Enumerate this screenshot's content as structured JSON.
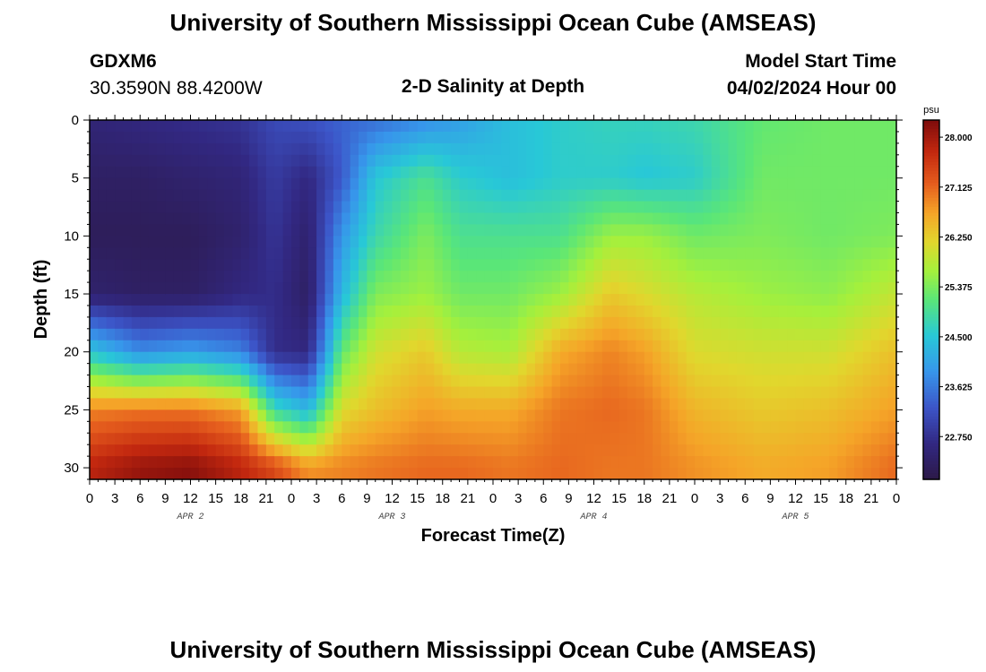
{
  "header": {
    "title": "University of Southern Mississippi Ocean Cube (AMSEAS)",
    "station": "GDXM6",
    "location": "30.3590N  88.4200W",
    "plot_title": "2-D Salinity at Depth",
    "model_start_label": "Model Start Time",
    "model_start_value": "04/02/2024 Hour 00"
  },
  "footer": {
    "title": "University of Southern Mississippi Ocean Cube (AMSEAS)"
  },
  "chart_data": {
    "type": "heatmap",
    "title": "2-D Salinity at Depth",
    "xlabel": "Forecast Time(Z)",
    "ylabel": "Depth (ft)",
    "x_hours_range": [
      0,
      96
    ],
    "x_tick_step_hours": 3,
    "x_tick_labels": [
      "0",
      "3",
      "6",
      "9",
      "12",
      "15",
      "18",
      "21",
      "0",
      "3",
      "6",
      "9",
      "12",
      "15",
      "18",
      "21",
      "0",
      "3",
      "6",
      "9",
      "12",
      "15",
      "18",
      "21",
      "0",
      "3",
      "6",
      "9",
      "12",
      "15",
      "18",
      "21",
      "0"
    ],
    "day_labels": [
      {
        "label": "APR 2",
        "hour": 12
      },
      {
        "label": "APR 3",
        "hour": 36
      },
      {
        "label": "APR 4",
        "hour": 60
      },
      {
        "label": "APR 5",
        "hour": 84
      }
    ],
    "y_range": [
      0,
      31
    ],
    "y_ticks": [
      0,
      5,
      10,
      15,
      20,
      25,
      30
    ],
    "y_tick_labels": [
      "0",
      "5",
      "10",
      "15",
      "20",
      "25",
      "30"
    ],
    "colorbar": {
      "unit": "psu",
      "range": [
        22.0,
        28.3
      ],
      "ticks": [
        28.0,
        27.125,
        26.25,
        25.375,
        24.5,
        23.625,
        22.75
      ],
      "tick_labels": [
        "28.000",
        "27.125",
        "26.250",
        "25.375",
        "24.500",
        "23.625",
        "22.750"
      ]
    },
    "salinity_field": {
      "description": "salinity (psu) at depth 0,5,10,15,20,25,30 ft for each forecast hour",
      "depths_ft": [
        0,
        5,
        10,
        15,
        20,
        25,
        30
      ],
      "profiles": [
        {
          "hour": 0,
          "values": [
            22.5,
            22.3,
            22.2,
            22.4,
            24.5,
            26.9,
            27.8
          ]
        },
        {
          "hour": 6,
          "values": [
            22.6,
            22.3,
            22.2,
            22.3,
            23.8,
            27.0,
            28.1
          ]
        },
        {
          "hour": 12,
          "values": [
            22.7,
            22.4,
            22.2,
            22.3,
            24.0,
            27.0,
            28.2
          ]
        },
        {
          "hour": 18,
          "values": [
            22.8,
            22.5,
            22.4,
            22.6,
            23.7,
            26.7,
            27.8
          ]
        },
        {
          "hour": 22,
          "values": [
            23.1,
            22.9,
            22.8,
            22.7,
            22.7,
            24.8,
            27.4
          ]
        },
        {
          "hour": 26,
          "values": [
            23.2,
            22.6,
            22.4,
            22.3,
            22.6,
            24.3,
            26.8
          ]
        },
        {
          "hour": 30,
          "values": [
            23.4,
            23.3,
            23.9,
            24.3,
            25.2,
            26.1,
            26.9
          ]
        },
        {
          "hour": 34,
          "values": [
            23.5,
            24.5,
            24.8,
            25.4,
            26.0,
            26.4,
            27.0
          ]
        },
        {
          "hour": 40,
          "values": [
            23.8,
            25.0,
            25.4,
            25.6,
            26.3,
            26.7,
            27.1
          ]
        },
        {
          "hour": 44,
          "values": [
            24.0,
            24.6,
            25.0,
            25.3,
            25.8,
            26.6,
            27.1
          ]
        },
        {
          "hour": 50,
          "values": [
            24.4,
            24.4,
            25.0,
            25.3,
            25.7,
            26.6,
            27.0
          ]
        },
        {
          "hour": 56,
          "values": [
            24.6,
            24.6,
            25.0,
            25.6,
            26.6,
            27.0,
            27.1
          ]
        },
        {
          "hour": 62,
          "values": [
            24.7,
            24.6,
            25.6,
            26.3,
            26.9,
            27.1,
            27.0
          ]
        },
        {
          "hour": 66,
          "values": [
            24.7,
            24.5,
            25.6,
            26.1,
            26.7,
            27.0,
            27.0
          ]
        },
        {
          "hour": 72,
          "values": [
            24.8,
            24.6,
            25.3,
            25.8,
            26.1,
            26.5,
            26.8
          ]
        },
        {
          "hour": 80,
          "values": [
            25.2,
            25.3,
            25.4,
            25.6,
            26.0,
            26.3,
            26.6
          ]
        },
        {
          "hour": 88,
          "values": [
            25.3,
            25.3,
            25.3,
            25.5,
            26.0,
            26.4,
            26.7
          ]
        },
        {
          "hour": 96,
          "values": [
            25.3,
            25.3,
            25.4,
            25.9,
            26.4,
            26.7,
            27.1
          ]
        }
      ]
    }
  }
}
